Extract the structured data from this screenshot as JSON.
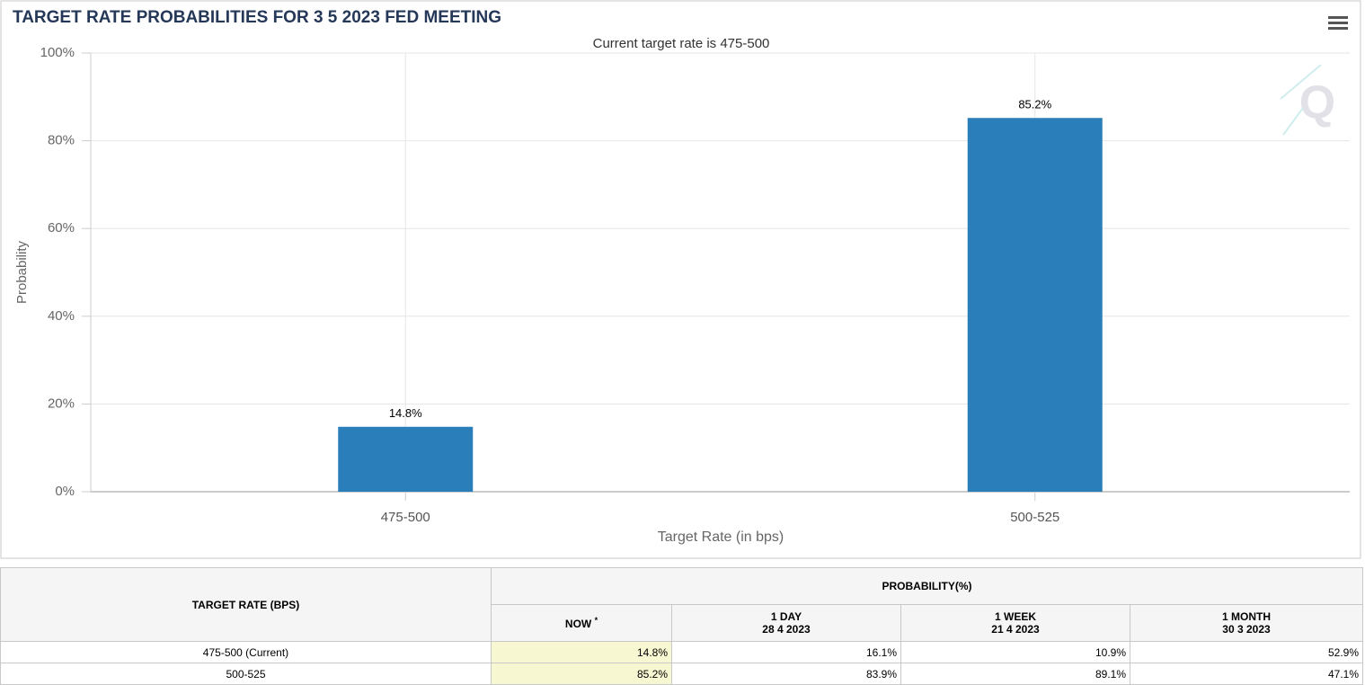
{
  "chart_data": {
    "type": "bar",
    "title": "TARGET RATE PROBABILITIES FOR 3 5 2023 FED MEETING",
    "subtitle": "Current target rate is 475-500",
    "y_label": "Probability",
    "x_label": "Target Rate (in bps)",
    "categories": [
      "475-500",
      "500-525"
    ],
    "values": [
      14.8,
      85.2
    ],
    "value_labels": [
      "14.8%",
      "85.2%"
    ],
    "color": "#2a7fba",
    "ylim": [
      0,
      100
    ],
    "yticks": [
      {
        "value": 0,
        "label": "0%"
      },
      {
        "value": 20,
        "label": "20%"
      },
      {
        "value": 40,
        "label": "40%"
      },
      {
        "value": 60,
        "label": "60%"
      },
      {
        "value": 80,
        "label": "80%"
      },
      {
        "value": 100,
        "label": "100%"
      }
    ],
    "grid": true
  },
  "table": {
    "row_header": "TARGET RATE (BPS)",
    "group_header": "PROBABILITY(%)",
    "columns": [
      {
        "label": "NOW",
        "note": "*"
      },
      {
        "label": "1 DAY",
        "date": "28 4 2023"
      },
      {
        "label": "1 WEEK",
        "date": "21 4 2023"
      },
      {
        "label": "1 MONTH",
        "date": "30 3 2023"
      }
    ],
    "rows": [
      [
        "475-500 (Current)",
        "14.8%",
        "16.1%",
        "10.9%",
        "52.9%"
      ],
      [
        "500-525",
        "85.2%",
        "83.9%",
        "89.1%",
        "47.1%"
      ]
    ]
  }
}
